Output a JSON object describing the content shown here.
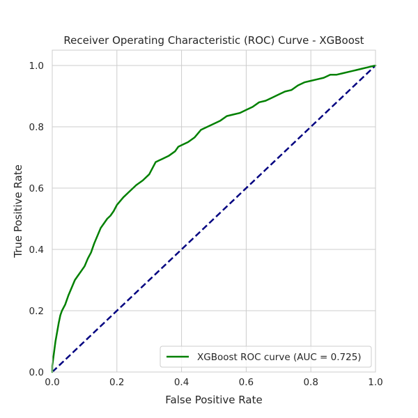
{
  "chart_data": {
    "type": "line",
    "title": "Receiver Operating Characteristic (ROC) Curve - XGBoost",
    "xlabel": "False Positive Rate",
    "ylabel": "True Positive Rate",
    "xlim": [
      0.0,
      1.0
    ],
    "ylim": [
      0.0,
      1.05
    ],
    "xticks": [
      "0.0",
      "0.2",
      "0.4",
      "0.6",
      "0.8",
      "1.0"
    ],
    "yticks": [
      "0.0",
      "0.2",
      "0.4",
      "0.6",
      "0.8",
      "1.0"
    ],
    "grid": true,
    "legend": {
      "placement": "lower-right",
      "entries": [
        "XGBoost ROC curve (AUC = 0.725)"
      ]
    },
    "series": [
      {
        "name": "XGBoost ROC curve (AUC = 0.725)",
        "color": "#008000",
        "style": "solid",
        "x": [
          0.0,
          0.0,
          0.005,
          0.01,
          0.015,
          0.02,
          0.025,
          0.03,
          0.04,
          0.05,
          0.06,
          0.07,
          0.08,
          0.09,
          0.1,
          0.11,
          0.12,
          0.13,
          0.14,
          0.15,
          0.16,
          0.17,
          0.18,
          0.19,
          0.2,
          0.22,
          0.24,
          0.26,
          0.28,
          0.3,
          0.32,
          0.33,
          0.34,
          0.36,
          0.38,
          0.39,
          0.4,
          0.42,
          0.44,
          0.46,
          0.48,
          0.5,
          0.52,
          0.54,
          0.56,
          0.58,
          0.6,
          0.62,
          0.64,
          0.66,
          0.68,
          0.7,
          0.72,
          0.74,
          0.76,
          0.78,
          0.8,
          0.82,
          0.84,
          0.86,
          0.88,
          0.9,
          0.92,
          0.94,
          0.96,
          0.98,
          1.0
        ],
        "y": [
          0.0,
          0.02,
          0.06,
          0.1,
          0.13,
          0.16,
          0.185,
          0.2,
          0.22,
          0.25,
          0.275,
          0.3,
          0.315,
          0.33,
          0.345,
          0.37,
          0.39,
          0.42,
          0.445,
          0.47,
          0.485,
          0.5,
          0.51,
          0.525,
          0.545,
          0.57,
          0.59,
          0.61,
          0.625,
          0.645,
          0.685,
          0.69,
          0.695,
          0.705,
          0.72,
          0.735,
          0.74,
          0.75,
          0.765,
          0.79,
          0.8,
          0.81,
          0.82,
          0.835,
          0.84,
          0.845,
          0.855,
          0.865,
          0.88,
          0.885,
          0.895,
          0.905,
          0.915,
          0.92,
          0.935,
          0.945,
          0.95,
          0.955,
          0.96,
          0.97,
          0.97,
          0.975,
          0.98,
          0.985,
          0.99,
          0.995,
          1.0
        ]
      },
      {
        "name": "",
        "color": "#000080",
        "style": "dashed",
        "x": [
          0.0,
          1.0
        ],
        "y": [
          0.0,
          1.0
        ]
      }
    ]
  }
}
